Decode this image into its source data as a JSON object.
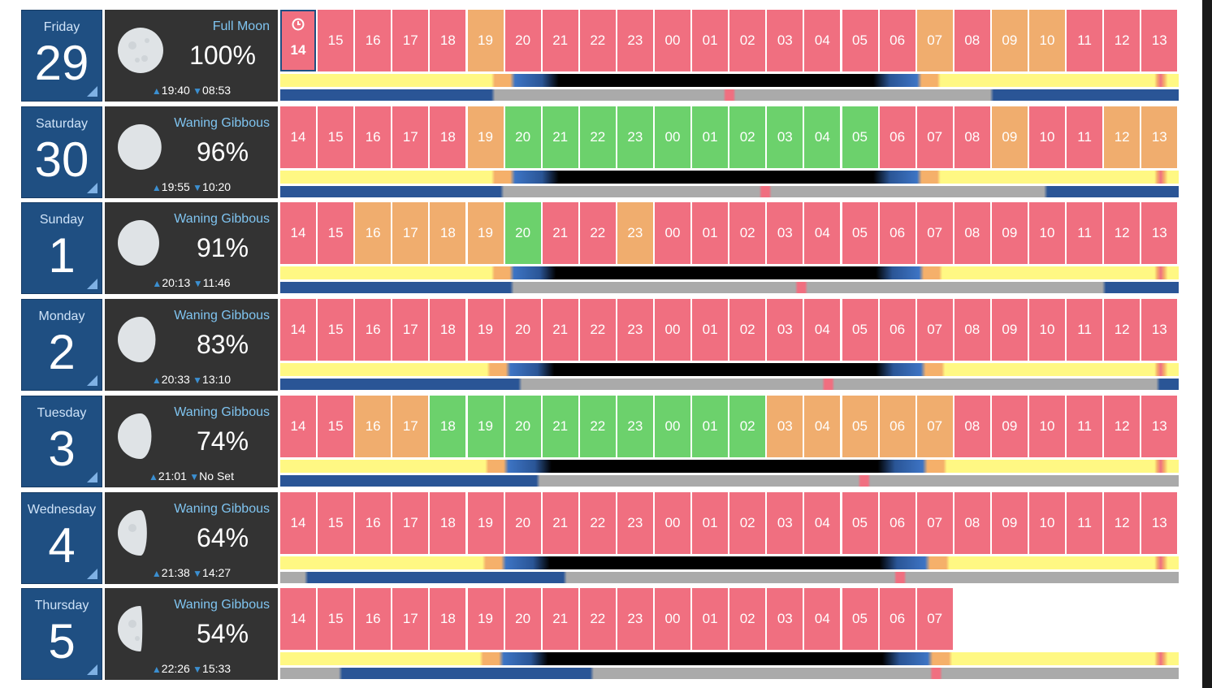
{
  "hours": [
    "14",
    "15",
    "16",
    "17",
    "18",
    "19",
    "20",
    "21",
    "22",
    "23",
    "00",
    "01",
    "02",
    "03",
    "04",
    "05",
    "06",
    "07",
    "08",
    "09",
    "10",
    "11",
    "12",
    "13"
  ],
  "colors": {
    "poor": "#f06f80",
    "average": "#f0ad6e",
    "good": "#6cd16c",
    "date_bg": "#1f4f82",
    "moon_panel_bg": "#333333",
    "phase_text": "#7fc4f0",
    "day": "#fff883",
    "dawn": "#f5b06a",
    "twilight": "#3d74c4",
    "night": "#000000",
    "moon_up": "#aaaaaa",
    "moon_down": "#2a5596",
    "transit": "#f06f80"
  },
  "days": [
    {
      "weekday": "Friday",
      "date": "29",
      "phase": "Full Moon",
      "illumination": "100%",
      "moonrise": "19:40",
      "moonset": "08:53",
      "illum_fraction": 1.0,
      "waning": true,
      "current_hour_index": 0,
      "ratings": [
        "p",
        "p",
        "p",
        "p",
        "p",
        "a",
        "p",
        "p",
        "p",
        "p",
        "p",
        "p",
        "p",
        "p",
        "p",
        "p",
        "p",
        "a",
        "p",
        "a",
        "a",
        "p",
        "p",
        "p"
      ],
      "sun": {
        "dusk_start": 0.235,
        "night_start": 0.31,
        "night_end": 0.66,
        "dawn_end": 0.735
      },
      "moon": {
        "rise": 0.235,
        "set": 0.79,
        "transit": 0.5
      }
    },
    {
      "weekday": "Saturday",
      "date": "30",
      "phase": "Waning Gibbous",
      "illumination": "96%",
      "moonrise": "19:55",
      "moonset": "10:20",
      "illum_fraction": 0.96,
      "waning": true,
      "ratings": [
        "p",
        "p",
        "p",
        "p",
        "p",
        "a",
        "g",
        "g",
        "g",
        "g",
        "g",
        "g",
        "g",
        "g",
        "g",
        "g",
        "p",
        "p",
        "p",
        "a",
        "p",
        "p",
        "a",
        "a"
      ],
      "sun": {
        "dusk_start": 0.235,
        "night_start": 0.31,
        "night_end": 0.66,
        "dawn_end": 0.735
      },
      "moon": {
        "rise": 0.245,
        "set": 0.85,
        "transit": 0.54
      }
    },
    {
      "weekday": "Sunday",
      "date": "1",
      "phase": "Waning Gibbous",
      "illumination": "91%",
      "moonrise": "20:13",
      "moonset": "11:46",
      "illum_fraction": 0.91,
      "waning": true,
      "ratings": [
        "p",
        "p",
        "a",
        "a",
        "a",
        "a",
        "g",
        "p",
        "p",
        "a",
        "p",
        "p",
        "p",
        "p",
        "p",
        "p",
        "p",
        "p",
        "p",
        "p",
        "p",
        "p",
        "p",
        "p"
      ],
      "sun": {
        "dusk_start": 0.235,
        "night_start": 0.307,
        "night_end": 0.663,
        "dawn_end": 0.737
      },
      "moon": {
        "rise": 0.256,
        "set": 0.915,
        "transit": 0.58
      }
    },
    {
      "weekday": "Monday",
      "date": "2",
      "phase": "Waning Gibbous",
      "illumination": "83%",
      "moonrise": "20:33",
      "moonset": "13:10",
      "illum_fraction": 0.83,
      "waning": true,
      "ratings": [
        "p",
        "p",
        "p",
        "p",
        "p",
        "p",
        "p",
        "p",
        "p",
        "p",
        "p",
        "p",
        "p",
        "p",
        "p",
        "p",
        "p",
        "p",
        "p",
        "p",
        "p",
        "p",
        "p",
        "p"
      ],
      "sun": {
        "dusk_start": 0.23,
        "night_start": 0.305,
        "night_end": 0.663,
        "dawn_end": 0.74
      },
      "moon": {
        "rise": 0.265,
        "set": 0.975,
        "transit": 0.61
      }
    },
    {
      "weekday": "Tuesday",
      "date": "3",
      "phase": "Waning Gibbous",
      "illumination": "74%",
      "moonrise": "21:01",
      "moonset": "No Set",
      "illum_fraction": 0.74,
      "waning": true,
      "ratings": [
        "p",
        "p",
        "a",
        "a",
        "g",
        "g",
        "g",
        "g",
        "g",
        "g",
        "g",
        "g",
        "g",
        "a",
        "a",
        "a",
        "a",
        "a",
        "p",
        "p",
        "p",
        "p",
        "p",
        "p"
      ],
      "sun": {
        "dusk_start": 0.228,
        "night_start": 0.302,
        "night_end": 0.665,
        "dawn_end": 0.742
      },
      "moon": {
        "rise": 0.285,
        "set": 1.0,
        "transit": 0.65
      }
    },
    {
      "weekday": "Wednesday",
      "date": "4",
      "phase": "Waning Gibbous",
      "illumination": "64%",
      "moonrise": "21:38",
      "moonset": "14:27",
      "illum_fraction": 0.64,
      "waning": true,
      "ratings": [
        "p",
        "p",
        "p",
        "p",
        "p",
        "p",
        "p",
        "p",
        "p",
        "p",
        "p",
        "p",
        "p",
        "p",
        "p",
        "p",
        "p",
        "p",
        "p",
        "p",
        "p",
        "p",
        "p",
        "p"
      ],
      "sun": {
        "dusk_start": 0.225,
        "night_start": 0.3,
        "night_end": 0.667,
        "dawn_end": 0.745
      },
      "moon": {
        "rise": 0.315,
        "set": 0.027,
        "transit": 0.69
      }
    },
    {
      "weekday": "Thursday",
      "date": "5",
      "phase": "Waning Gibbous",
      "illumination": "54%",
      "moonrise": "22:26",
      "moonset": "15:33",
      "illum_fraction": 0.54,
      "waning": true,
      "ratings": [
        "p",
        "p",
        "p",
        "p",
        "p",
        "p",
        "p",
        "p",
        "p",
        "p",
        "p",
        "p",
        "p",
        "p",
        "p",
        "p",
        "p",
        "p"
      ],
      "sun": {
        "dusk_start": 0.222,
        "night_start": 0.298,
        "night_end": 0.67,
        "dawn_end": 0.748
      },
      "moon": {
        "rise": 0.345,
        "set": 0.065,
        "transit": 0.73
      }
    }
  ]
}
